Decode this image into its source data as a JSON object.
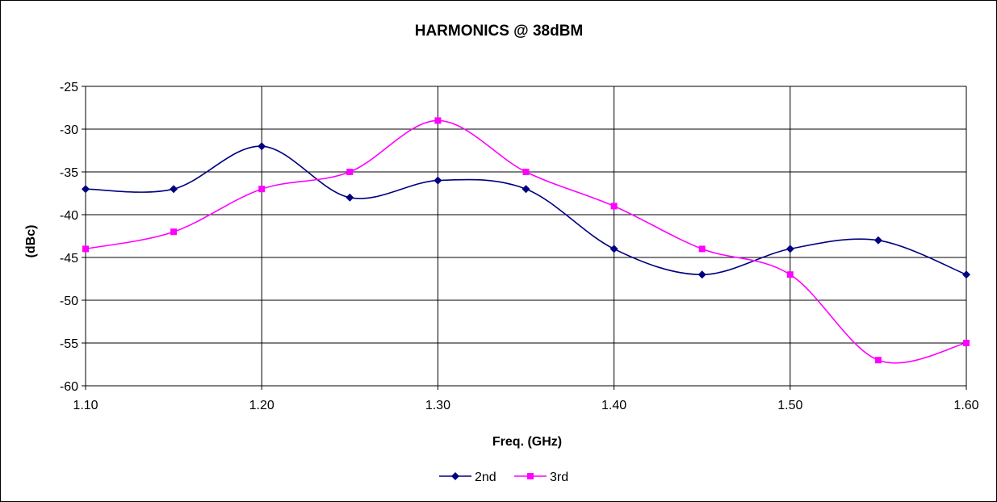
{
  "chart_data": {
    "type": "line",
    "title": "HARMONICS @ 38dBM",
    "xlabel": "Freq. (GHz)",
    "ylabel": "(dBc)",
    "x": [
      1.1,
      1.15,
      1.2,
      1.25,
      1.3,
      1.35,
      1.4,
      1.45,
      1.5,
      1.55,
      1.6
    ],
    "x_tick_labels": [
      "1.10",
      "1.20",
      "1.30",
      "1.40",
      "1.50",
      "1.60"
    ],
    "x_ticks": [
      1.1,
      1.2,
      1.3,
      1.4,
      1.5,
      1.6
    ],
    "xlim": [
      1.1,
      1.6
    ],
    "y_tick_labels": [
      "-25",
      "-30",
      "-35",
      "-40",
      "-45",
      "-50",
      "-55",
      "-60"
    ],
    "y_ticks": [
      -25,
      -30,
      -35,
      -40,
      -45,
      -50,
      -55,
      -60
    ],
    "ylim": [
      -60,
      -25
    ],
    "grid": true,
    "legend_position": "bottom",
    "series": [
      {
        "name": "2nd",
        "color": "#000080",
        "marker": "diamond",
        "values": [
          -37,
          -37,
          -32,
          -38,
          -36,
          -37,
          -44,
          -47,
          -44,
          -43,
          -47
        ]
      },
      {
        "name": "3rd",
        "color": "#FF00FF",
        "marker": "square",
        "values": [
          -44,
          -42,
          -37,
          -35,
          -29,
          -35,
          -39,
          -44,
          -47,
          -57,
          -55
        ]
      }
    ]
  }
}
